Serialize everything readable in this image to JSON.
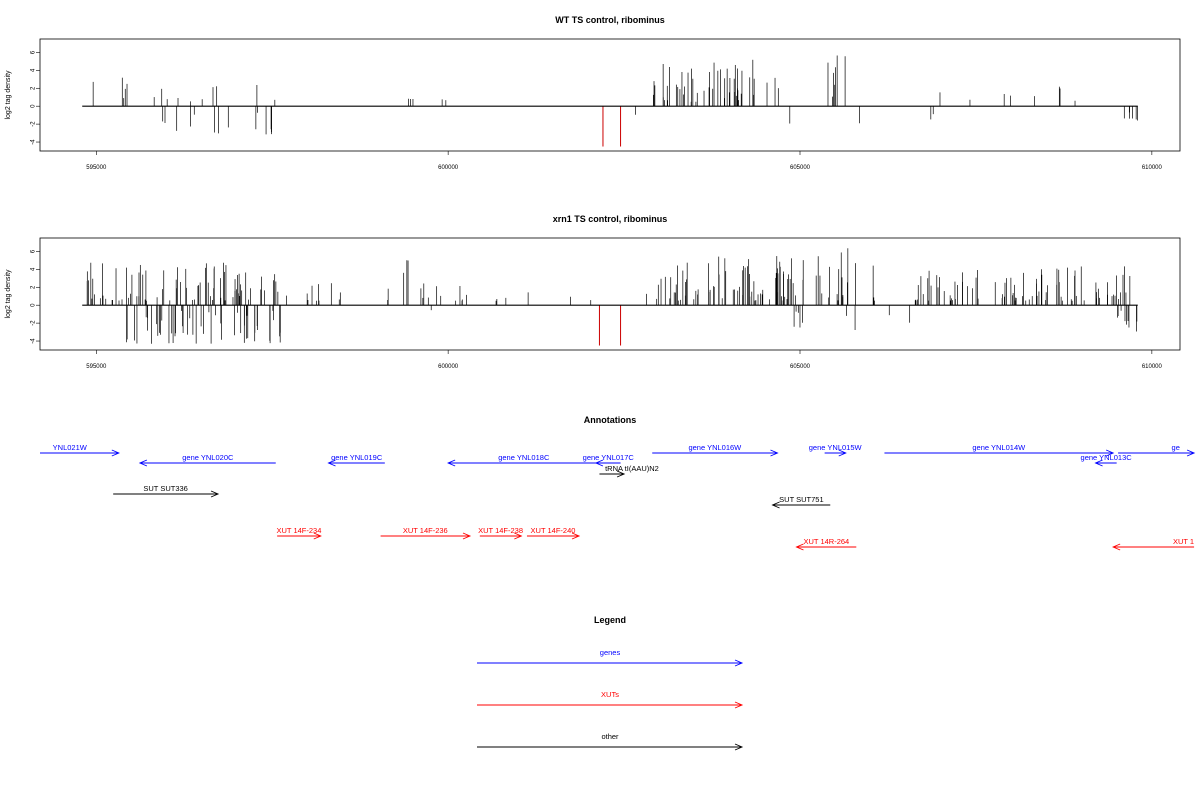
{
  "colors": {
    "gene": "#0000ff",
    "xut": "#ff0000",
    "other": "#000000",
    "neg_highlight": "#cc0000"
  },
  "chart_data": [
    {
      "type": "bar",
      "title": "WT TS control, ribominus",
      "ylabel": "log2 tag density",
      "xlim": [
        594200,
        610400
      ],
      "ylim": [
        -5,
        7.5
      ],
      "xticks": [
        595000,
        600000,
        605000,
        610000
      ],
      "xtick_labels": [
        "595000",
        "600000",
        "605000",
        "610000"
      ],
      "yticks": [
        -4,
        -2,
        0,
        2,
        4,
        6
      ],
      "ytick_labels": [
        "-4",
        "-2",
        "0",
        "2",
        "4",
        "6"
      ],
      "line_x": [
        594800,
        609800
      ],
      "highlight_bars": [
        {
          "x": 602200,
          "y": -4.5
        },
        {
          "x": 602450,
          "y": -4.5
        }
      ],
      "segments": [
        {
          "from": 594800,
          "to": 595700,
          "density": 0.5,
          "min": 0.5,
          "max": 3.2
        },
        {
          "from": 595500,
          "to": 596100,
          "density": 0.3,
          "min": -2.0,
          "max": -0.3
        },
        {
          "from": 595700,
          "to": 596800,
          "density": 0.7,
          "min": 0.3,
          "max": 2.7
        },
        {
          "from": 596000,
          "to": 596900,
          "density": 0.7,
          "min": -3.2,
          "max": -0.4
        },
        {
          "from": 596800,
          "to": 597700,
          "density": 0.2,
          "min": 0.3,
          "max": 3.0
        },
        {
          "from": 597000,
          "to": 597700,
          "density": 0.8,
          "min": -3.2,
          "max": -0.5
        },
        {
          "from": 599400,
          "to": 599550,
          "density": 2.0,
          "min": 0.8,
          "max": 1.6
        },
        {
          "from": 599800,
          "to": 600200,
          "density": 0.4,
          "min": 0.5,
          "max": 2.5
        },
        {
          "from": 602500,
          "to": 602700,
          "density": 0.2,
          "min": -1.2,
          "max": -0.4
        },
        {
          "from": 602900,
          "to": 604700,
          "density": 2.8,
          "min": 0.5,
          "max": 5.2
        },
        {
          "from": 604300,
          "to": 604900,
          "density": 0.2,
          "min": -2.2,
          "max": -0.5
        },
        {
          "from": 605350,
          "to": 605850,
          "density": 1.4,
          "min": 0.5,
          "max": 5.8
        },
        {
          "from": 605700,
          "to": 605900,
          "density": 0.2,
          "min": -2.4,
          "max": -1.0
        },
        {
          "from": 606600,
          "to": 609600,
          "density": 0.25,
          "min": 0.6,
          "max": 3.5
        },
        {
          "from": 606800,
          "to": 606900,
          "density": 1.5,
          "min": -1.6,
          "max": -0.8
        },
        {
          "from": 609600,
          "to": 609800,
          "density": 3.0,
          "min": -1.6,
          "max": -0.6
        }
      ]
    },
    {
      "type": "bar",
      "title": "xrn1 TS control, ribominus",
      "ylabel": "log2 tag density",
      "xlim": [
        594200,
        610400
      ],
      "ylim": [
        -5,
        7.5
      ],
      "xticks": [
        595000,
        600000,
        605000,
        610000
      ],
      "xtick_labels": [
        "595000",
        "600000",
        "605000",
        "610000"
      ],
      "yticks": [
        -4,
        -2,
        0,
        2,
        4,
        6
      ],
      "ytick_labels": [
        "-4",
        "-2",
        "0",
        "2",
        "4",
        "6"
      ],
      "line_x": [
        594800,
        609800
      ],
      "highlight_bars": [
        {
          "x": 602150,
          "y": -4.5
        },
        {
          "x": 602450,
          "y": -4.5
        }
      ],
      "segments": [
        {
          "from": 594800,
          "to": 597600,
          "density": 2.8,
          "min": 0.5,
          "max": 4.8
        },
        {
          "from": 595400,
          "to": 597700,
          "density": 2.2,
          "min": -4.3,
          "max": -0.4
        },
        {
          "from": 597700,
          "to": 598500,
          "density": 1.2,
          "min": 0.5,
          "max": 3.2
        },
        {
          "from": 599000,
          "to": 601000,
          "density": 0.8,
          "min": 0.5,
          "max": 2.5
        },
        {
          "from": 599350,
          "to": 599450,
          "density": 3.0,
          "min": 2.0,
          "max": 6.0
        },
        {
          "from": 599700,
          "to": 600100,
          "density": 0.3,
          "min": -1.2,
          "max": -0.3
        },
        {
          "from": 601000,
          "to": 602300,
          "density": 0.25,
          "min": 0.5,
          "max": 2.3
        },
        {
          "from": 602800,
          "to": 604900,
          "density": 3.5,
          "min": 0.5,
          "max": 5.5
        },
        {
          "from": 604900,
          "to": 606200,
          "density": 1.8,
          "min": 0.5,
          "max": 7.0
        },
        {
          "from": 604900,
          "to": 606200,
          "density": 0.5,
          "min": -2.8,
          "max": -0.4
        },
        {
          "from": 606200,
          "to": 606600,
          "density": 0.4,
          "min": -2.0,
          "max": -0.4
        },
        {
          "from": 606600,
          "to": 609700,
          "density": 2.8,
          "min": 0.5,
          "max": 4.6
        },
        {
          "from": 609500,
          "to": 609800,
          "density": 3.0,
          "min": -3.0,
          "max": -0.5
        }
      ]
    }
  ],
  "annotations": {
    "title": "Annotations",
    "items": [
      {
        "label": "gene YNL021W",
        "visible_label": "YNL021W",
        "kind": "gene",
        "strand": "+",
        "row": 0,
        "start": 594200,
        "end": 595320,
        "label_x": 594380
      },
      {
        "label": "gene YNL020C",
        "kind": "gene",
        "strand": "-",
        "row": 1,
        "start": 595620,
        "end": 597550
      },
      {
        "label": "gene YNL019C",
        "kind": "gene",
        "strand": "-",
        "row": 1,
        "start": 598300,
        "end": 599100
      },
      {
        "label": "gene YNL018C",
        "kind": "gene",
        "strand": "-",
        "row": 1,
        "start": 600000,
        "end": 602150
      },
      {
        "label": "gene YNL017C",
        "kind": "gene",
        "strand": "-",
        "row": 1,
        "start": 602100,
        "end": 602450
      },
      {
        "label": "gene YNL016W",
        "kind": "gene",
        "strand": "+",
        "row": 0,
        "start": 602900,
        "end": 604680
      },
      {
        "label": "gene YNL015W",
        "kind": "gene",
        "strand": "+",
        "row": 0,
        "start": 605350,
        "end": 605650
      },
      {
        "label": "gene YNL014W",
        "kind": "gene",
        "strand": "+",
        "row": 0,
        "start": 606200,
        "end": 609450
      },
      {
        "label": "gene YNL013C",
        "kind": "gene",
        "strand": "-",
        "row": 1,
        "start": 609200,
        "end": 609500
      },
      {
        "label": "gene YNL012W",
        "visible_label": "ge",
        "kind": "gene",
        "strand": "+",
        "row": 0,
        "start": 609520,
        "end": 610600,
        "label_x": 610280
      },
      {
        "label": "tRNA tI(AAU)N2",
        "kind": "other",
        "strand": "+",
        "row": 2,
        "start": 602150,
        "end": 602500,
        "label_x": 602230
      },
      {
        "label": "SUT SUT336",
        "kind": "other",
        "strand": "+",
        "row": 3,
        "start": 595240,
        "end": 596730
      },
      {
        "label": "SUT SUT751",
        "kind": "other",
        "strand": "-",
        "row": 4,
        "start": 604610,
        "end": 605430
      },
      {
        "label": "XUT 14F-234",
        "kind": "xut",
        "strand": "+",
        "row": 5,
        "start": 597570,
        "end": 598190
      },
      {
        "label": "XUT 14F-236",
        "kind": "xut",
        "strand": "+",
        "row": 5,
        "start": 599040,
        "end": 600310
      },
      {
        "label": "XUT 14F-238",
        "kind": "xut",
        "strand": "+",
        "row": 5,
        "start": 600450,
        "end": 601040
      },
      {
        "label": "XUT 14F-240",
        "kind": "xut",
        "strand": "+",
        "row": 5,
        "start": 601120,
        "end": 601860
      },
      {
        "label": "XUT 14R-264",
        "kind": "xut",
        "strand": "-",
        "row": 6,
        "start": 604950,
        "end": 605800
      },
      {
        "label": "XUT 14R-266",
        "visible_label": "XUT 1",
        "kind": "xut",
        "strand": "-",
        "row": 6,
        "start": 609450,
        "end": 610600,
        "label_x": 610300
      }
    ]
  },
  "legend": {
    "title": "Legend",
    "items": [
      {
        "label": "genes",
        "kind": "gene"
      },
      {
        "label": "XUTs",
        "kind": "xut"
      },
      {
        "label": "other",
        "kind": "other"
      }
    ]
  }
}
